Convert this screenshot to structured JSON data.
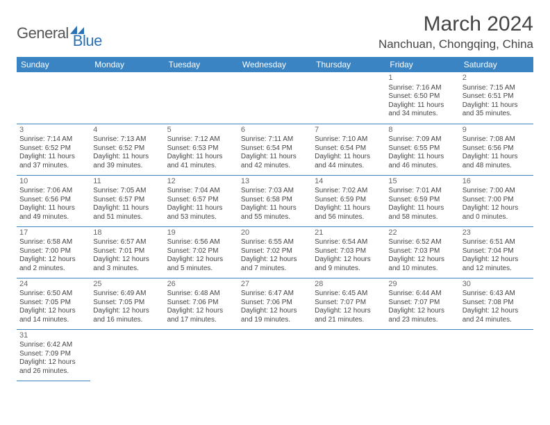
{
  "logo": {
    "text1": "General",
    "text2": "Blue"
  },
  "title": "March 2024",
  "location": "Nanchuan, Chongqing, China",
  "colors": {
    "header_bg": "#3b84c4",
    "header_fg": "#ffffff",
    "border": "#3b84c4",
    "text": "#444444",
    "logo_blue": "#2a72b5"
  },
  "daysOfWeek": [
    "Sunday",
    "Monday",
    "Tuesday",
    "Wednesday",
    "Thursday",
    "Friday",
    "Saturday"
  ],
  "weeks": [
    [
      null,
      null,
      null,
      null,
      null,
      {
        "n": "1",
        "sr": "Sunrise: 7:16 AM",
        "ss": "Sunset: 6:50 PM",
        "d1": "Daylight: 11 hours",
        "d2": "and 34 minutes."
      },
      {
        "n": "2",
        "sr": "Sunrise: 7:15 AM",
        "ss": "Sunset: 6:51 PM",
        "d1": "Daylight: 11 hours",
        "d2": "and 35 minutes."
      }
    ],
    [
      {
        "n": "3",
        "sr": "Sunrise: 7:14 AM",
        "ss": "Sunset: 6:52 PM",
        "d1": "Daylight: 11 hours",
        "d2": "and 37 minutes."
      },
      {
        "n": "4",
        "sr": "Sunrise: 7:13 AM",
        "ss": "Sunset: 6:52 PM",
        "d1": "Daylight: 11 hours",
        "d2": "and 39 minutes."
      },
      {
        "n": "5",
        "sr": "Sunrise: 7:12 AM",
        "ss": "Sunset: 6:53 PM",
        "d1": "Daylight: 11 hours",
        "d2": "and 41 minutes."
      },
      {
        "n": "6",
        "sr": "Sunrise: 7:11 AM",
        "ss": "Sunset: 6:54 PM",
        "d1": "Daylight: 11 hours",
        "d2": "and 42 minutes."
      },
      {
        "n": "7",
        "sr": "Sunrise: 7:10 AM",
        "ss": "Sunset: 6:54 PM",
        "d1": "Daylight: 11 hours",
        "d2": "and 44 minutes."
      },
      {
        "n": "8",
        "sr": "Sunrise: 7:09 AM",
        "ss": "Sunset: 6:55 PM",
        "d1": "Daylight: 11 hours",
        "d2": "and 46 minutes."
      },
      {
        "n": "9",
        "sr": "Sunrise: 7:08 AM",
        "ss": "Sunset: 6:56 PM",
        "d1": "Daylight: 11 hours",
        "d2": "and 48 minutes."
      }
    ],
    [
      {
        "n": "10",
        "sr": "Sunrise: 7:06 AM",
        "ss": "Sunset: 6:56 PM",
        "d1": "Daylight: 11 hours",
        "d2": "and 49 minutes."
      },
      {
        "n": "11",
        "sr": "Sunrise: 7:05 AM",
        "ss": "Sunset: 6:57 PM",
        "d1": "Daylight: 11 hours",
        "d2": "and 51 minutes."
      },
      {
        "n": "12",
        "sr": "Sunrise: 7:04 AM",
        "ss": "Sunset: 6:57 PM",
        "d1": "Daylight: 11 hours",
        "d2": "and 53 minutes."
      },
      {
        "n": "13",
        "sr": "Sunrise: 7:03 AM",
        "ss": "Sunset: 6:58 PM",
        "d1": "Daylight: 11 hours",
        "d2": "and 55 minutes."
      },
      {
        "n": "14",
        "sr": "Sunrise: 7:02 AM",
        "ss": "Sunset: 6:59 PM",
        "d1": "Daylight: 11 hours",
        "d2": "and 56 minutes."
      },
      {
        "n": "15",
        "sr": "Sunrise: 7:01 AM",
        "ss": "Sunset: 6:59 PM",
        "d1": "Daylight: 11 hours",
        "d2": "and 58 minutes."
      },
      {
        "n": "16",
        "sr": "Sunrise: 7:00 AM",
        "ss": "Sunset: 7:00 PM",
        "d1": "Daylight: 12 hours",
        "d2": "and 0 minutes."
      }
    ],
    [
      {
        "n": "17",
        "sr": "Sunrise: 6:58 AM",
        "ss": "Sunset: 7:00 PM",
        "d1": "Daylight: 12 hours",
        "d2": "and 2 minutes."
      },
      {
        "n": "18",
        "sr": "Sunrise: 6:57 AM",
        "ss": "Sunset: 7:01 PM",
        "d1": "Daylight: 12 hours",
        "d2": "and 3 minutes."
      },
      {
        "n": "19",
        "sr": "Sunrise: 6:56 AM",
        "ss": "Sunset: 7:02 PM",
        "d1": "Daylight: 12 hours",
        "d2": "and 5 minutes."
      },
      {
        "n": "20",
        "sr": "Sunrise: 6:55 AM",
        "ss": "Sunset: 7:02 PM",
        "d1": "Daylight: 12 hours",
        "d2": "and 7 minutes."
      },
      {
        "n": "21",
        "sr": "Sunrise: 6:54 AM",
        "ss": "Sunset: 7:03 PM",
        "d1": "Daylight: 12 hours",
        "d2": "and 9 minutes."
      },
      {
        "n": "22",
        "sr": "Sunrise: 6:52 AM",
        "ss": "Sunset: 7:03 PM",
        "d1": "Daylight: 12 hours",
        "d2": "and 10 minutes."
      },
      {
        "n": "23",
        "sr": "Sunrise: 6:51 AM",
        "ss": "Sunset: 7:04 PM",
        "d1": "Daylight: 12 hours",
        "d2": "and 12 minutes."
      }
    ],
    [
      {
        "n": "24",
        "sr": "Sunrise: 6:50 AM",
        "ss": "Sunset: 7:05 PM",
        "d1": "Daylight: 12 hours",
        "d2": "and 14 minutes."
      },
      {
        "n": "25",
        "sr": "Sunrise: 6:49 AM",
        "ss": "Sunset: 7:05 PM",
        "d1": "Daylight: 12 hours",
        "d2": "and 16 minutes."
      },
      {
        "n": "26",
        "sr": "Sunrise: 6:48 AM",
        "ss": "Sunset: 7:06 PM",
        "d1": "Daylight: 12 hours",
        "d2": "and 17 minutes."
      },
      {
        "n": "27",
        "sr": "Sunrise: 6:47 AM",
        "ss": "Sunset: 7:06 PM",
        "d1": "Daylight: 12 hours",
        "d2": "and 19 minutes."
      },
      {
        "n": "28",
        "sr": "Sunrise: 6:45 AM",
        "ss": "Sunset: 7:07 PM",
        "d1": "Daylight: 12 hours",
        "d2": "and 21 minutes."
      },
      {
        "n": "29",
        "sr": "Sunrise: 6:44 AM",
        "ss": "Sunset: 7:07 PM",
        "d1": "Daylight: 12 hours",
        "d2": "and 23 minutes."
      },
      {
        "n": "30",
        "sr": "Sunrise: 6:43 AM",
        "ss": "Sunset: 7:08 PM",
        "d1": "Daylight: 12 hours",
        "d2": "and 24 minutes."
      }
    ],
    [
      {
        "n": "31",
        "sr": "Sunrise: 6:42 AM",
        "ss": "Sunset: 7:09 PM",
        "d1": "Daylight: 12 hours",
        "d2": "and 26 minutes."
      },
      null,
      null,
      null,
      null,
      null,
      null
    ]
  ]
}
